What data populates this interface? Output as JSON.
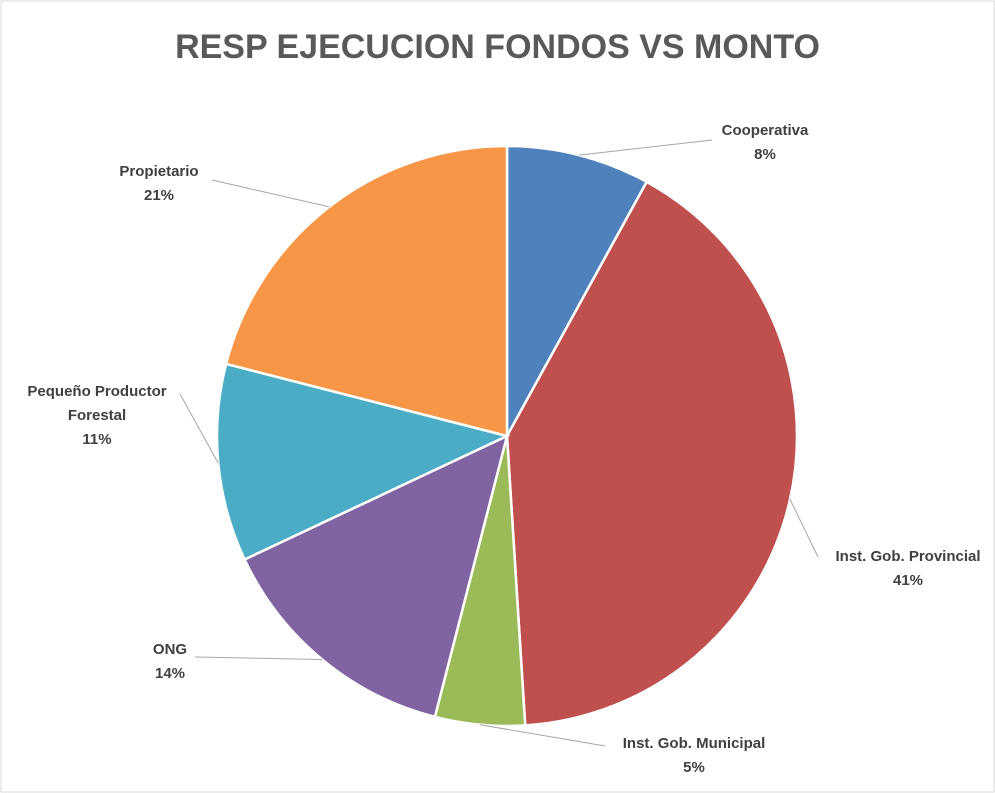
{
  "chart_data": {
    "type": "pie",
    "title": "RESP EJECUCION FONDOS VS MONTO",
    "categories": [
      "Cooperativa",
      "Inst. Gob. Provincial",
      "Inst. Gob. Municipal",
      "ONG",
      "Pequeño Productor Forestal",
      "Propietario"
    ],
    "values": [
      8,
      41,
      5,
      14,
      11,
      21
    ],
    "value_labels": [
      "8%",
      "41%",
      "5%",
      "14%",
      "11%",
      "21%"
    ],
    "colors": [
      "#4f81bd",
      "#c0504d",
      "#9bbb59",
      "#8064a2",
      "#4bacc6",
      "#f79646"
    ]
  }
}
